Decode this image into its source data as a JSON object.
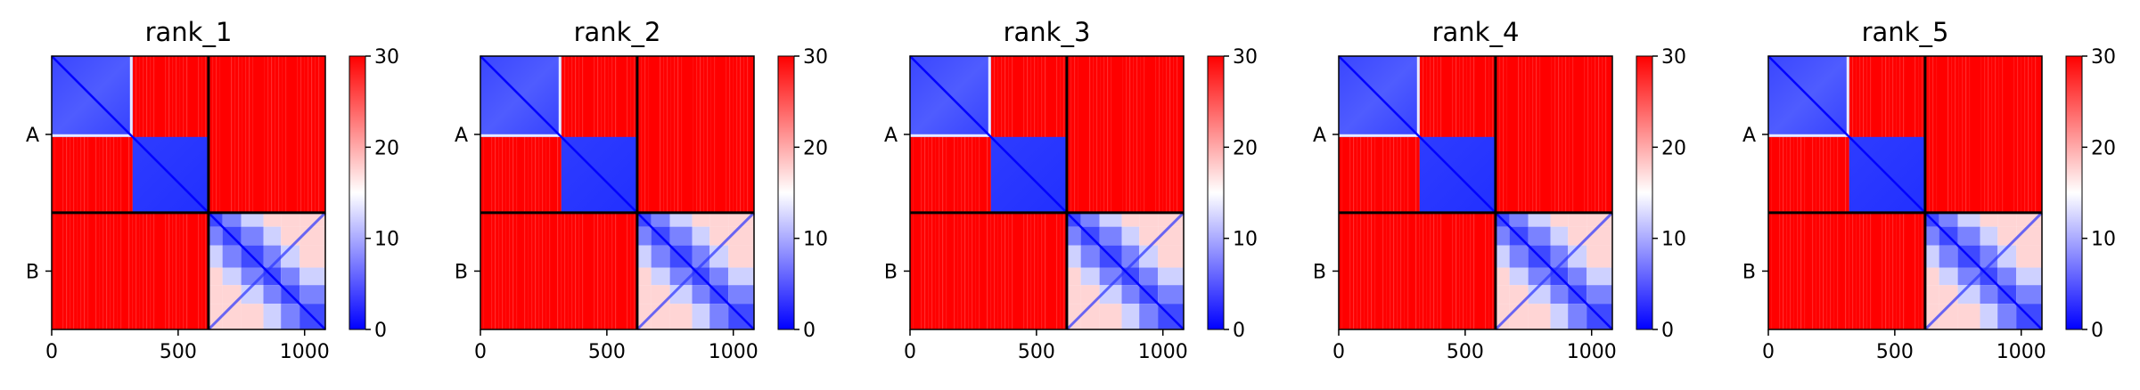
{
  "chart_data": {
    "type": "heatmap",
    "shared": {
      "chain_labels": [
        "A",
        "B"
      ],
      "chain_lengths": [
        620,
        462
      ],
      "total_residues": 1082,
      "x_ticks": [
        0,
        500,
        1000
      ],
      "colorbar_ticks": [
        0,
        10,
        20,
        30
      ],
      "value_range": [
        0,
        30
      ],
      "colormap": [
        "#0000ff",
        "#ffffff",
        "#ff0000"
      ],
      "chain_boundary_color": "#000000",
      "block_description": {
        "A_domain_1": [
          0,
          320
        ],
        "A_domain_2": [
          320,
          620
        ],
        "B_domain": [
          620,
          1082
        ]
      }
    },
    "panels": [
      {
        "title": "rank_1"
      },
      {
        "title": "rank_2"
      },
      {
        "title": "rank_3"
      },
      {
        "title": "rank_4"
      },
      {
        "title": "rank_5"
      }
    ]
  }
}
